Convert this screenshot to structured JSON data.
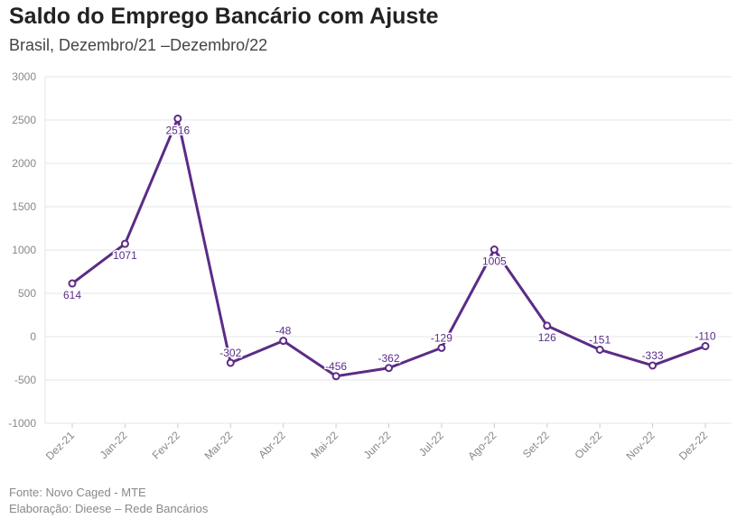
{
  "title": "Saldo do Emprego Bancário com Ajuste",
  "subtitle": "Brasil, Dezembro/21 –Dezembro/22",
  "footer": {
    "source": "Fonte: Novo Caged - MTE",
    "credit": "Elaboração: Dieese – Rede Bancários"
  },
  "colors": {
    "line": "#5b2c86",
    "grid": "#e6e6e6",
    "tick": "#888888",
    "label": "#5b2c86"
  },
  "chart_data": {
    "type": "line",
    "categories": [
      "Dez-21",
      "Jan-22",
      "Fev-22",
      "Mar-22",
      "Abr-22",
      "Mai-22",
      "Jun-22",
      "Jul-22",
      "Ago-22",
      "Set-22",
      "Out-22",
      "Nov-22",
      "Dez-22"
    ],
    "values": [
      614,
      1071,
      2516,
      -302,
      -48,
      -456,
      -362,
      -129,
      1005,
      126,
      -151,
      -333,
      -110
    ],
    "data_labels": [
      "614",
      "1071",
      "2516",
      "-302",
      "-48",
      "-456",
      "-362",
      "-129",
      "1005",
      "126",
      "-151",
      "-333",
      "-110"
    ],
    "label_position": [
      "below",
      "below",
      "below",
      "above",
      "above",
      "above",
      "above",
      "above",
      "below",
      "below",
      "above",
      "above",
      "above"
    ],
    "ylim": [
      -1000,
      3000
    ],
    "yticks": [
      -1000,
      -500,
      0,
      500,
      1000,
      1500,
      2000,
      2500,
      3000
    ],
    "ytick_labels": [
      "-1000",
      "-500",
      "0",
      "500",
      "1000",
      "1500",
      "2000",
      "2500",
      "3000"
    ],
    "grid": true,
    "legend": "none",
    "xlabel": "",
    "ylabel": ""
  }
}
